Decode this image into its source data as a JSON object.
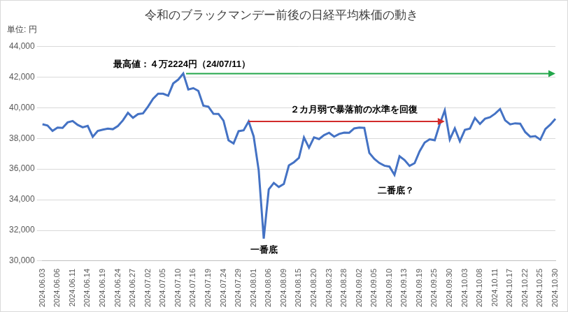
{
  "chart_data": {
    "type": "line",
    "title": "令和のブラックマンデー前後の日経平均株価の動き",
    "ylabel": "単位: 円",
    "categories": [
      "2024.06.03",
      null,
      null,
      "2024.06.06",
      null,
      null,
      "2024.06.11",
      null,
      null,
      "2024.06.14",
      null,
      null,
      "2024.06.19",
      null,
      null,
      "2024.06.24",
      null,
      null,
      "2024.06.27",
      null,
      null,
      "2024.07.02",
      null,
      null,
      "2024.07.05",
      null,
      null,
      "2024.07.10",
      null,
      null,
      "2024.07.16",
      null,
      null,
      "2024.07.19",
      null,
      null,
      "2024.07.24",
      null,
      null,
      "2024.07.29",
      null,
      null,
      "2024.08.01",
      null,
      null,
      "2024.08.06",
      null,
      null,
      "2024.08.09",
      null,
      null,
      "2024.08.15",
      null,
      null,
      "2024.08.20",
      null,
      null,
      "2024.08.23",
      null,
      null,
      "2024.08.28",
      null,
      null,
      "2024.09.02",
      null,
      null,
      "2024.09.05",
      null,
      null,
      "2024.09.10",
      null,
      null,
      "2024.09.13",
      null,
      null,
      "2024.09.19",
      null,
      null,
      "2024.09.25",
      null,
      null,
      "2024.09.30",
      null,
      null,
      "2024.10.03",
      null,
      null,
      "2024.10.08",
      null,
      null,
      "2024.10.11",
      null,
      null,
      "2024.10.17",
      null,
      null,
      "2024.10.22",
      null,
      null,
      "2024.10.25",
      null,
      null,
      "2024.10.30"
    ],
    "values": [
      38923,
      38837,
      38490,
      38703,
      38683,
      39038,
      39134,
      38876,
      38720,
      38814,
      38102,
      38482,
      38570,
      38633,
      38596,
      38804,
      39173,
      39667,
      39341,
      39583,
      39631,
      40074,
      40580,
      40913,
      40912,
      40780,
      41580,
      41831,
      42224,
      41190,
      41275,
      41097,
      40126,
      40063,
      39599,
      39594,
      39154,
      37869,
      37667,
      38469,
      38525,
      39101,
      38126,
      35909,
      31458,
      34675,
      35089,
      34831,
      35025,
      36232,
      36442,
      36726,
      38062,
      37388,
      38062,
      37951,
      38211,
      38364,
      38110,
      38288,
      38371,
      38362,
      38647,
      38700,
      38686,
      37047,
      36657,
      36391,
      36215,
      36159,
      35619,
      36833,
      36581,
      36203,
      36380,
      37155,
      37723,
      37940,
      37870,
      38926,
      39829,
      37919,
      38651,
      37808,
      38552,
      38635,
      39332,
      38937,
      39277,
      39380,
      39605,
      39910,
      39180,
      38911,
      38981,
      38954,
      38411,
      38104,
      38143,
      37913,
      38605,
      38903,
      39277
    ],
    "color": "#4472c4",
    "ylim": [
      30000,
      44000
    ],
    "yticks": [
      {
        "value": 30000,
        "label": "30,000"
      },
      {
        "value": 32000,
        "label": "32,000"
      },
      {
        "value": 34000,
        "label": "34,000"
      },
      {
        "value": 36000,
        "label": "36,000"
      },
      {
        "value": 38000,
        "label": "38,000"
      },
      {
        "value": 40000,
        "label": "40,000"
      },
      {
        "value": 42000,
        "label": "42,000"
      },
      {
        "value": 44000,
        "label": "44,000"
      }
    ],
    "grid": true,
    "annotations": [
      {
        "text": "最高値：４万2224円（24/07/11）"
      },
      {
        "text": "２カ月弱で暴落前の水準を回復"
      },
      {
        "text": "一番底"
      },
      {
        "text": "二番底？"
      }
    ]
  }
}
